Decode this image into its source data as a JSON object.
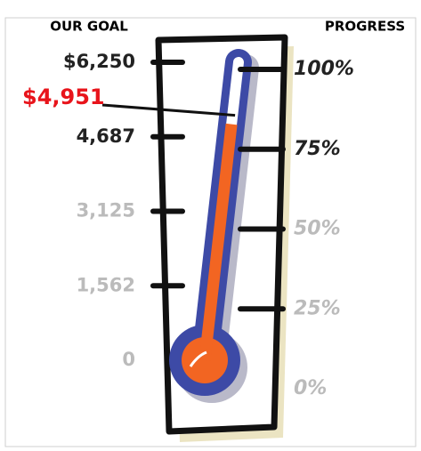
{
  "chart_data": {
    "type": "thermometer",
    "y_label": "OUR GOAL",
    "y2_label": "PROGRESS",
    "values": [
      4951
    ],
    "value_labels": [
      "$4,951"
    ],
    "value_label_color": "#e8141b",
    "ylim": [
      0,
      6250
    ],
    "yticks": [
      0,
      {
        "value": 1562,
        "label": "1,562"
      },
      {
        "value": 3125,
        "label": "3,125"
      },
      {
        "value": 4687,
        "label": "4,687"
      },
      {
        "value": 6250,
        "label": "$6,250"
      }
    ],
    "ytick_label_colors": [
      "#bbbbbb",
      "#bbbbbb",
      "#bbbbbb",
      "#222222",
      "#222222"
    ],
    "y2lim": [
      0,
      100
    ],
    "y2ticks": [
      {
        "value": 0,
        "label": "0%"
      },
      {
        "value": 25,
        "label": "25%"
      },
      {
        "value": 50,
        "label": "50%"
      },
      {
        "value": 75,
        "label": "75%"
      },
      {
        "value": 100,
        "label": "100%"
      }
    ],
    "y2tick_label_colors": [
      "#bbbbbb",
      "#bbbbbb",
      "#bbbbbb",
      "#222222",
      "#222222"
    ],
    "tube_color": "#3d4aa6",
    "fill_color": "#f26522"
  }
}
